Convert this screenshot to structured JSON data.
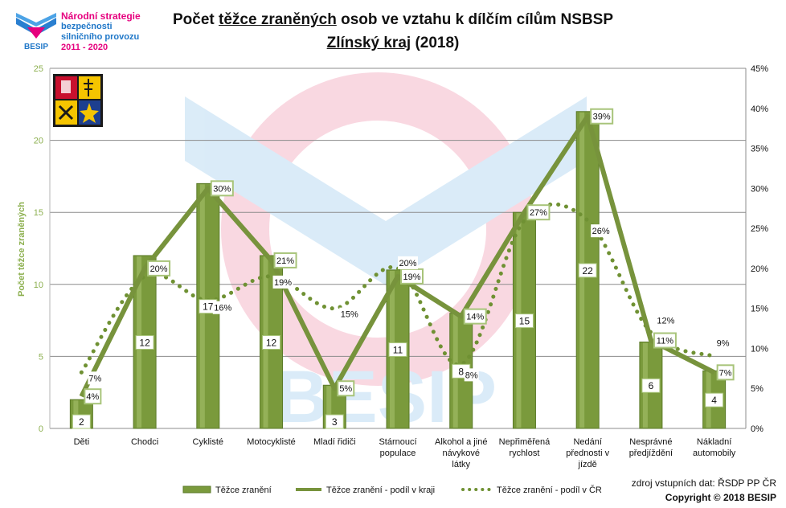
{
  "logo": {
    "brand": "BESIP",
    "line1": "Národní strategie",
    "line2": "bezpečnosti",
    "line3": "silničního provozu",
    "line4": "2011 - 2020"
  },
  "title": {
    "pre": "Počet ",
    "underlined": "těžce zraněných",
    "post": " osob ve vztahu k dílčím cílům NSBSP",
    "line2_underlined": "Zlínský kraj",
    "line2_post": " (2018)"
  },
  "watermark": "BESIP",
  "source": "zdroj vstupních dat: ŘSDP PP ČR",
  "copyright": "Copyright © 2018  BESIP",
  "colors": {
    "bar": "#7a9a3c",
    "bar_dark": "#5b7a28",
    "region_line": "#77933c",
    "cz_line": "#6f9133",
    "label_border": "#a8c47a"
  },
  "chart_data": {
    "type": "bar",
    "categories": [
      [
        "Děti"
      ],
      [
        "Chodci"
      ],
      [
        "Cyklisté"
      ],
      [
        "Motocyklisté"
      ],
      [
        "Mladí řidiči"
      ],
      [
        "Stárnoucí",
        "populace"
      ],
      [
        "Alkohol a jiné",
        "návykové",
        "látky"
      ],
      [
        "Nepřiměřená",
        "rychlost"
      ],
      [
        "Nedání",
        "přednosti v",
        "jízdě"
      ],
      [
        "Nesprávné",
        "předjíždění"
      ],
      [
        "Nákladní",
        "automobily"
      ]
    ],
    "ylabel": "Počet těžce zraněných",
    "ylim": [
      0,
      25
    ],
    "yticks": [
      0,
      5,
      10,
      15,
      20,
      25
    ],
    "y2lim": [
      0,
      45
    ],
    "y2ticks": [
      "0%",
      "5%",
      "10%",
      "15%",
      "20%",
      "25%",
      "30%",
      "35%",
      "40%",
      "45%"
    ],
    "grid": true,
    "legend_position": "bottom",
    "series": [
      {
        "name": "Těžce zranění",
        "kind": "bar",
        "axis": "left",
        "values": [
          2,
          12,
          17,
          12,
          3,
          11,
          8,
          15,
          22,
          6,
          4
        ]
      },
      {
        "name": "Těžce zranění - podíl v kraji",
        "kind": "line",
        "axis": "right",
        "values": [
          4,
          20,
          30,
          21,
          5,
          19,
          14,
          27,
          39,
          11,
          7
        ],
        "labels": [
          "4%",
          "20%",
          "30%",
          "21%",
          "5%",
          "19%",
          "14%",
          "27%",
          "39%",
          "11%",
          "7%"
        ]
      },
      {
        "name": "Těžce zranění - podíl v ČR",
        "kind": "dotted-line",
        "axis": "right",
        "values": [
          7,
          19,
          16,
          19,
          15,
          20,
          8,
          26,
          26,
          12,
          9
        ],
        "labels": [
          "7%",
          "",
          "16%",
          "19%",
          "15%",
          "20%",
          "8%",
          "",
          "26%",
          "12%",
          "9%"
        ]
      }
    ]
  }
}
